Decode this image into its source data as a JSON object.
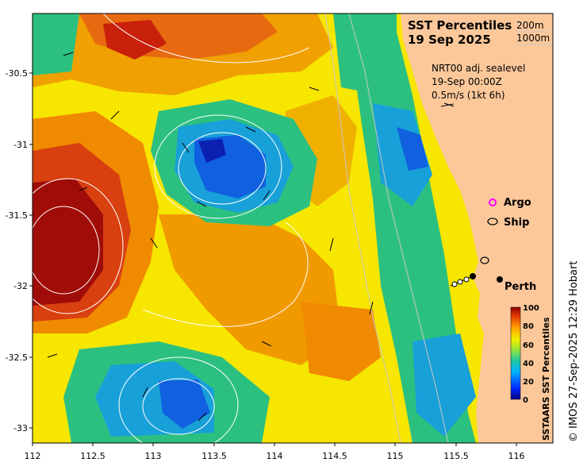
{
  "map": {
    "title_line1": "SST Percentiles",
    "title_line2": "19 Sep 2025",
    "contour_key": [
      "200m",
      "1000m"
    ],
    "info_lines": [
      "NRT00 adj. sealevel",
      "19-Sep 00:00Z",
      "0.5m/s (1kt 6h)"
    ],
    "legend": {
      "argo": "Argo",
      "ship": "Ship"
    },
    "city_label": "Perth",
    "credit": "© IMOS 27-Sep-2025 12:29 Hobart",
    "colorbar": {
      "label": "SSTAARS SST Percentiles",
      "ticks": [
        "0",
        "20",
        "40",
        "60",
        "80",
        "100"
      ]
    },
    "x_ticks": [
      "112",
      "112.5",
      "113",
      "113.5",
      "114",
      "114.5",
      "115",
      "115.5",
      "116"
    ],
    "y_ticks": [
      "-30.5",
      "-31",
      "-31.5",
      "-32",
      "-32.5",
      "-33"
    ],
    "colors": {
      "land": "#fcc89a",
      "argo": "#ff00ff",
      "ship": "#000000"
    }
  }
}
